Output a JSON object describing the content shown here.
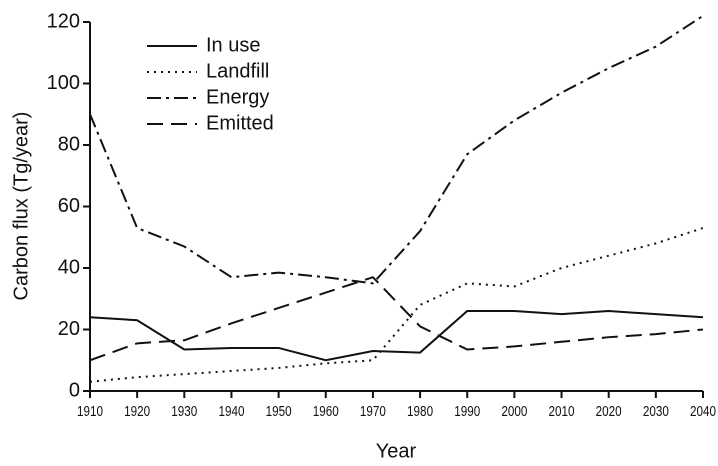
{
  "chart_data": {
    "type": "line",
    "xlabel": "Year",
    "ylabel": "Carbon flux (Tg/year)",
    "x": [
      1910,
      1920,
      1930,
      1940,
      1950,
      1960,
      1970,
      1980,
      1990,
      2000,
      2010,
      2020,
      2030,
      2040
    ],
    "series": [
      {
        "name": "In use",
        "color": "#111111",
        "dash": "solid",
        "values": [
          24,
          23,
          13.5,
          14,
          14,
          10,
          13,
          12.5,
          26,
          26,
          25,
          26,
          25,
          24
        ]
      },
      {
        "name": "Landfill",
        "color": "#111111",
        "dash": "dotted",
        "values": [
          3,
          4.5,
          5.5,
          6.5,
          7.5,
          9,
          10,
          28,
          35,
          34,
          40,
          44,
          48,
          53
        ]
      },
      {
        "name": "Energy",
        "color": "#111111",
        "dash": "dashdot",
        "values": [
          90,
          53,
          47,
          37,
          38.5,
          37,
          35,
          52,
          77,
          88,
          97,
          105,
          112,
          122
        ]
      },
      {
        "name": "Emitted",
        "color": "#111111",
        "dash": "dashed",
        "values": [
          10,
          15.5,
          16.5,
          22,
          27,
          32,
          37,
          21,
          13.5,
          14.5,
          16,
          17.5,
          18.5,
          20
        ]
      }
    ],
    "xlim": [
      1910,
      2040
    ],
    "xticks": [
      1910,
      1920,
      1930,
      1940,
      1950,
      1960,
      1970,
      1980,
      1990,
      2000,
      2010,
      2020,
      2030,
      2040
    ],
    "ylim": [
      0,
      120
    ],
    "yticks": [
      0,
      20,
      40,
      60,
      80,
      100,
      120
    ],
    "grid": false,
    "legend": "upper left"
  }
}
